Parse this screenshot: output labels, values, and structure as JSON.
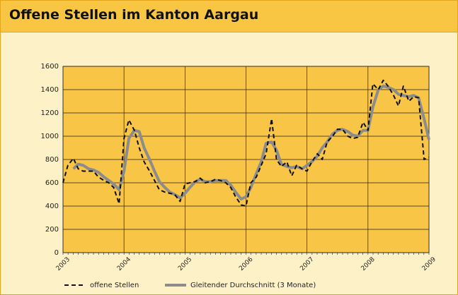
{
  "chart_data": {
    "type": "line",
    "title": "Offene Stellen im Kanton Aargau",
    "x": [
      2003,
      2003.08,
      2003.17,
      2003.25,
      2003.33,
      2003.42,
      2003.5,
      2003.58,
      2003.67,
      2003.75,
      2003.83,
      2003.92,
      2004,
      2004.08,
      2004.17,
      2004.25,
      2004.33,
      2004.42,
      2004.5,
      2004.58,
      2004.67,
      2004.75,
      2004.83,
      2004.92,
      2005,
      2005.08,
      2005.17,
      2005.25,
      2005.33,
      2005.42,
      2005.5,
      2005.58,
      2005.67,
      2005.75,
      2005.83,
      2005.92,
      2006,
      2006.08,
      2006.17,
      2006.25,
      2006.33,
      2006.42,
      2006.5,
      2006.58,
      2006.67,
      2006.75,
      2006.83,
      2006.92,
      2007,
      2007.08,
      2007.17,
      2007.25,
      2007.33,
      2007.42,
      2007.5,
      2007.58,
      2007.67,
      2007.75,
      2007.83,
      2007.92,
      2008,
      2008.08,
      2008.17,
      2008.25,
      2008.33,
      2008.42,
      2008.5,
      2008.58,
      2008.67,
      2008.75,
      2008.83,
      2008.92,
      2009
    ],
    "series": [
      {
        "name": "offene Stellen",
        "color": "#111111",
        "dash": true,
        "values": [
          600,
          750,
          810,
          720,
          700,
          700,
          700,
          650,
          620,
          600,
          560,
          420,
          980,
          1140,
          1050,
          900,
          780,
          700,
          620,
          540,
          520,
          510,
          500,
          440,
          590,
          600,
          610,
          640,
          600,
          610,
          630,
          620,
          600,
          560,
          480,
          410,
          400,
          600,
          650,
          750,
          850,
          1150,
          800,
          740,
          780,
          660,
          750,
          720,
          700,
          780,
          850,
          800,
          950,
          1000,
          1060,
          1060,
          1000,
          980,
          990,
          1120,
          1050,
          1450,
          1400,
          1480,
          1430,
          1350,
          1260,
          1430,
          1300,
          1340,
          1330,
          800,
          820
        ]
      },
      {
        "name": "Gleitender Durchschnitt (3 Monate)",
        "color": "#8c8c8c",
        "dash": false,
        "values": [
          null,
          null,
          720,
          760,
          750,
          720,
          710,
          690,
          650,
          620,
          590,
          540,
          700,
          980,
          1050,
          1040,
          900,
          800,
          700,
          610,
          560,
          520,
          500,
          470,
          510,
          560,
          610,
          630,
          610,
          610,
          620,
          620,
          620,
          580,
          520,
          460,
          480,
          560,
          680,
          780,
          940,
          950,
          880,
          760,
          740,
          730,
          740,
          720,
          750,
          780,
          830,
          900,
          950,
          1020,
          1050,
          1060,
          1040,
          1010,
          1000,
          1050,
          1050,
          1250,
          1400,
          1430,
          1420,
          1400,
          1360,
          1350,
          1340,
          1350,
          1330,
          1150,
          970
        ]
      }
    ],
    "xlim": [
      2003,
      2009
    ],
    "xticks": [
      2003,
      2004,
      2005,
      2006,
      2007,
      2008,
      2009
    ],
    "ylim": [
      0,
      1600
    ],
    "yticks": [
      0,
      200,
      400,
      600,
      800,
      1000,
      1200,
      1400,
      1600
    ],
    "grid": true
  }
}
